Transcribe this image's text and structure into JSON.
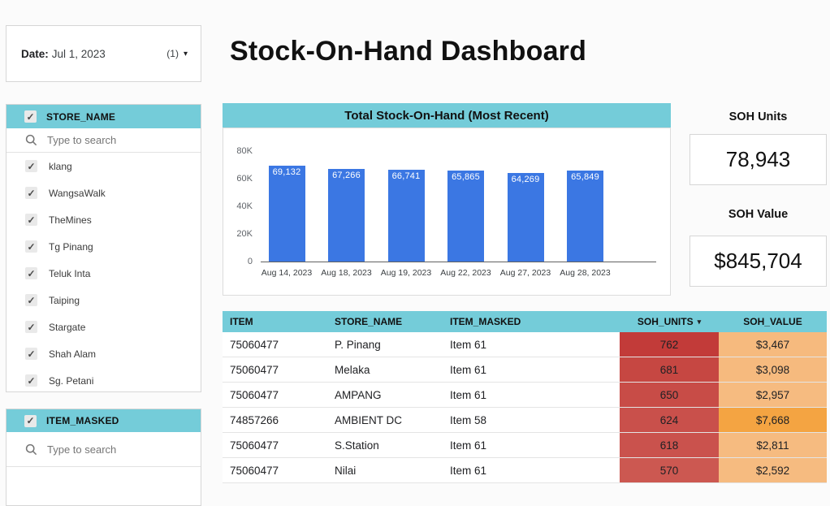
{
  "page": {
    "title": "Stock-On-Hand Dashboard"
  },
  "date_filter": {
    "label": "Date:",
    "value": "Jul 1, 2023",
    "count": "(1)"
  },
  "filters": [
    {
      "title": "STORE_NAME",
      "search_placeholder": "Type to search",
      "items": [
        "klang",
        "WangsaWalk",
        "TheMines",
        "Tg Pinang",
        "Teluk Inta",
        "Taiping",
        "Stargate",
        "Shah Alam",
        "Sg. Petani"
      ],
      "all_checked": true
    },
    {
      "title": "ITEM_MASKED",
      "search_placeholder": "Type to search",
      "items": [],
      "all_checked": true
    }
  ],
  "chart_data": {
    "type": "bar",
    "title": "Total Stock-On-Hand (Most Recent)",
    "categories": [
      "Aug 14, 2023",
      "Aug 18, 2023",
      "Aug 19, 2023",
      "Aug 22, 2023",
      "Aug 27, 2023",
      "Aug 28, 2023"
    ],
    "values": [
      69132,
      67266,
      66741,
      65865,
      64269,
      65849
    ],
    "value_labels": [
      "69,132",
      "67,266",
      "66,741",
      "65,865",
      "64,269",
      "65,849"
    ],
    "ylim": [
      0,
      80000
    ],
    "ytick_labels": [
      "80K",
      "60K",
      "40K",
      "20K",
      "0"
    ],
    "xlabel": "",
    "ylabel": "",
    "grid": false,
    "legend_position": "none",
    "bar_color": "#3b77e3",
    "label_color": "#ffffff"
  },
  "scorecards": [
    {
      "title": "SOH Units",
      "value": "78,943",
      "header_color": "#eec7c3"
    },
    {
      "title": "SOH Value",
      "value": "$845,704",
      "header_color": "#fbe8a7"
    }
  ],
  "table": {
    "columns": [
      {
        "label": "ITEM",
        "align": "left",
        "sort": ""
      },
      {
        "label": "STORE_NAME",
        "align": "left",
        "sort": ""
      },
      {
        "label": "ITEM_MASKED",
        "align": "left",
        "sort": ""
      },
      {
        "label": "SOH_UNITS",
        "align": "center",
        "sort": "desc"
      },
      {
        "label": "SOH_VALUE",
        "align": "center",
        "sort": ""
      }
    ],
    "rows": [
      {
        "item": "75060477",
        "store": "P. Pinang",
        "masked": "Item 61",
        "units": "762",
        "value": "$3,467",
        "units_bg": "#c23b39",
        "value_bg": "#f6ba7e"
      },
      {
        "item": "75060477",
        "store": "Melaka",
        "masked": "Item 61",
        "units": "681",
        "value": "$3,098",
        "units_bg": "#c64742",
        "value_bg": "#f6ba7e"
      },
      {
        "item": "75060477",
        "store": "AMPANG",
        "masked": "Item 61",
        "units": "650",
        "value": "$2,957",
        "units_bg": "#c84c47",
        "value_bg": "#f6bb80"
      },
      {
        "item": "74857266",
        "store": "AMBIENT DC",
        "masked": "Item 58",
        "units": "624",
        "value": "$7,668",
        "units_bg": "#c9504b",
        "value_bg": "#f4a442"
      },
      {
        "item": "75060477",
        "store": "S.Station",
        "masked": "Item 61",
        "units": "618",
        "value": "$2,811",
        "units_bg": "#ca524d",
        "value_bg": "#f6bb80"
      },
      {
        "item": "75060477",
        "store": "Nilai",
        "masked": "Item 61",
        "units": "570",
        "value": "$2,592",
        "units_bg": "#cc5851",
        "value_bg": "#f6bb80"
      }
    ]
  },
  "colors": {
    "accent_teal": "#74ccd9",
    "bar_blue": "#3b77e3",
    "units_red": "#c23b39",
    "value_orange": "#f6ba7e",
    "soh_units_pink": "#eec7c3",
    "soh_value_yellow": "#fbe8a7"
  }
}
